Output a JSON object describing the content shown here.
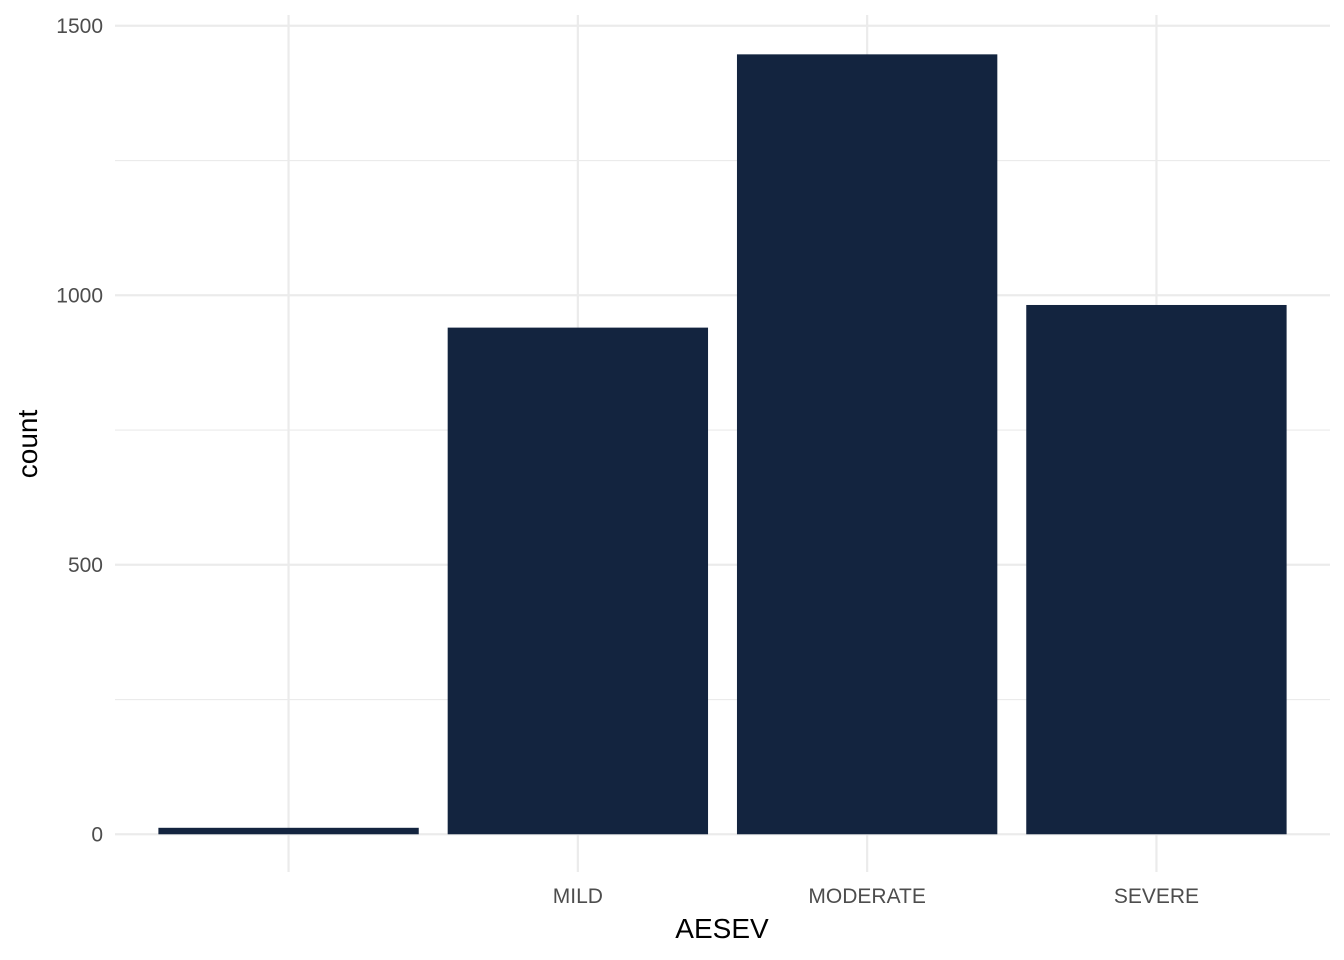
{
  "chart_data": {
    "type": "bar",
    "categories": [
      "",
      "MILD",
      "MODERATE",
      "SEVERE"
    ],
    "values": [
      12,
      940,
      1447,
      982
    ],
    "xlabel": "AESEV",
    "ylabel": "count",
    "ylim": [
      -70,
      1520
    ],
    "yticks": [
      0,
      500,
      1000,
      1500
    ],
    "yticks_minor": [
      250,
      750,
      1250
    ],
    "grid": true,
    "legend": "none",
    "bar_color": "#13243f",
    "grid_color": "#ebebeb"
  }
}
